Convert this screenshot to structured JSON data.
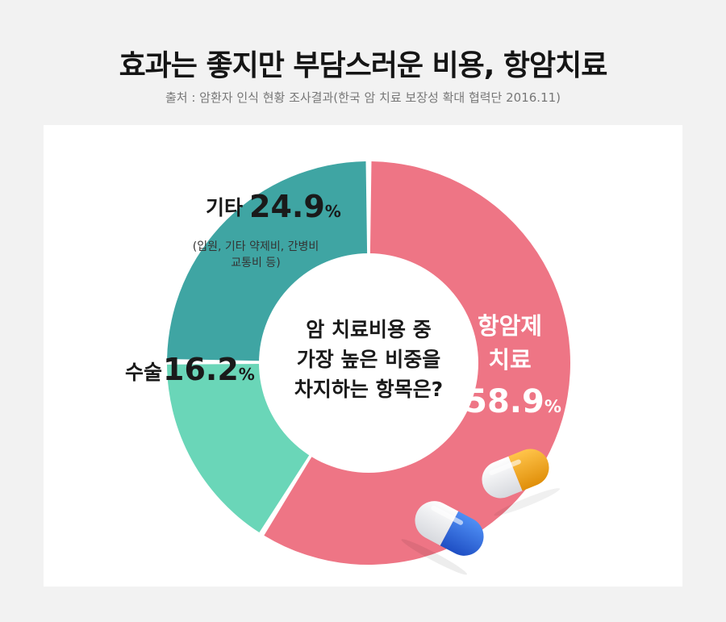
{
  "title": "효과는 좋지만 부담스러운 비용, 항암치료",
  "source": "출처 : 암환자 인식 현황 조사결과(한국 암 치료 보장성 확대 협력단 2016.11)",
  "colors": {
    "anticancer": "#ee7585",
    "surgery": "#6ad6b8",
    "other": "#3fa5a3",
    "capsule_orange": "#f1a51b",
    "capsule_blue": "#2f6fe0"
  },
  "chart_data": {
    "type": "pie",
    "donut": true,
    "center_text": [
      "암 치료비용 중",
      "가장 높은 비중을",
      "차지하는 항목은?"
    ],
    "slices": [
      {
        "label_lines": [
          "항암제",
          "치료"
        ],
        "value": 58.9,
        "value_text": "58.9",
        "note": []
      },
      {
        "label_lines": [
          "수술"
        ],
        "value": 16.2,
        "value_text": "16.2",
        "note": []
      },
      {
        "label_lines": [
          "기타"
        ],
        "value": 24.9,
        "value_text": "24.9",
        "note": [
          "(입원, 기타 약제비, 간병비",
          "교통비 등)"
        ]
      }
    ],
    "percent_sign": "%"
  },
  "icons": [
    "capsule-orange-icon",
    "capsule-blue-icon"
  ]
}
